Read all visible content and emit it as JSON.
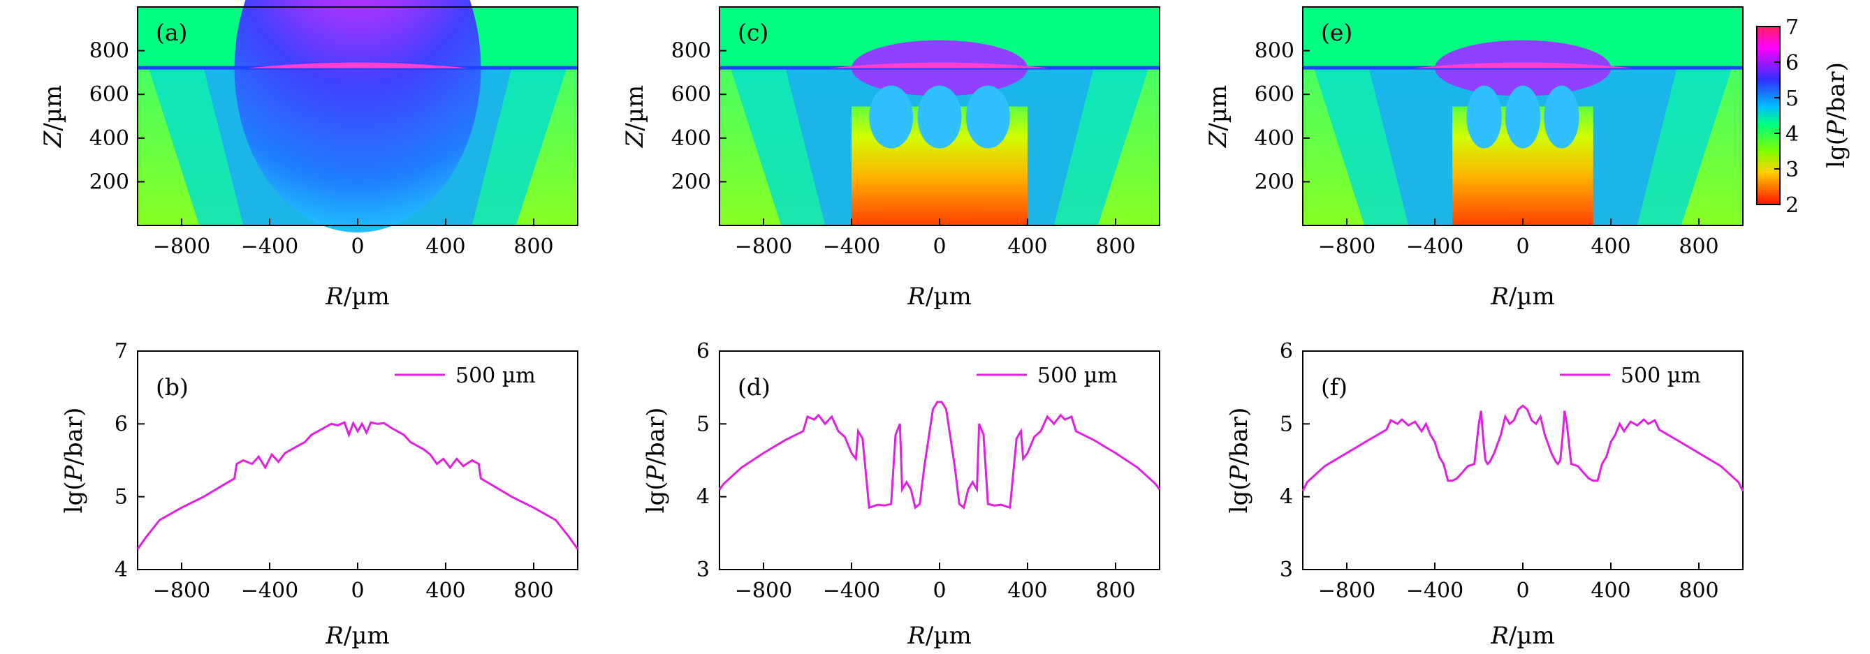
{
  "chart_data": {
    "type": "heatmap+line",
    "colorbar": {
      "label": "lg(P/bar)",
      "ticks": [
        "7",
        "6",
        "5",
        "4",
        "3",
        "2"
      ],
      "range": [
        2,
        7
      ]
    },
    "heatmap_panels": [
      {
        "label": "(a)",
        "xlabel": "R/µm",
        "ylabel": "Z/µm",
        "xlim": [
          -1000,
          1000
        ],
        "ylim": [
          0,
          1000
        ],
        "xticks": [
          "−800",
          "−400",
          "0",
          "400",
          "800"
        ],
        "yticks": [
          "200",
          "400",
          "600",
          "800"
        ],
        "surface_z": 720,
        "ambient_value": 4.0,
        "jet_width": 0
      },
      {
        "label": "(c)",
        "xlabel": "R/µm",
        "ylabel": "Z/µm",
        "xlim": [
          -1000,
          1000
        ],
        "ylim": [
          0,
          1000
        ],
        "xticks": [
          "−800",
          "−400",
          "0",
          "400",
          "800"
        ],
        "yticks": [
          "200",
          "400",
          "600",
          "800"
        ],
        "surface_z": 720,
        "ambient_value": 4.0,
        "jet_width": 400
      },
      {
        "label": "(e)",
        "xlabel": "R/µm",
        "ylabel": "Z/µm",
        "xlim": [
          -1000,
          1000
        ],
        "ylim": [
          0,
          1000
        ],
        "xticks": [
          "−800",
          "−400",
          "0",
          "400",
          "800"
        ],
        "yticks": [
          "200",
          "400",
          "600",
          "800"
        ],
        "surface_z": 720,
        "ambient_value": 4.0,
        "jet_width": 320
      }
    ],
    "line_panels": [
      {
        "label": "(b)",
        "legend": "500 µm",
        "color": "#e020e0",
        "xlabel": "R/µm",
        "ylabel": "lg(P/bar)",
        "xlim": [
          -1000,
          1000
        ],
        "ylim": [
          4,
          7
        ],
        "xticks": [
          "−800",
          "−400",
          "0",
          "400",
          "800"
        ],
        "yticks": [
          "4",
          "5",
          "6",
          "7"
        ],
        "series": {
          "x": [
            -1000,
            -960,
            -900,
            -800,
            -700,
            -600,
            -560,
            -550,
            -520,
            -480,
            -450,
            -420,
            -390,
            -360,
            -330,
            -300,
            -270,
            -240,
            -210,
            -180,
            -150,
            -120,
            -90,
            -60,
            -40,
            -20,
            0,
            20,
            40,
            60,
            90,
            120,
            150,
            180,
            210,
            240,
            270,
            300,
            330,
            360,
            390,
            420,
            450,
            480,
            520,
            550,
            560,
            600,
            700,
            800,
            900,
            960,
            1000
          ],
          "y": [
            4.28,
            4.45,
            4.68,
            4.85,
            5.0,
            5.18,
            5.25,
            5.45,
            5.5,
            5.45,
            5.55,
            5.4,
            5.58,
            5.48,
            5.6,
            5.65,
            5.7,
            5.75,
            5.85,
            5.9,
            5.95,
            6.0,
            5.98,
            6.02,
            5.85,
            6.01,
            5.9,
            6.0,
            5.88,
            6.02,
            6.0,
            6.01,
            5.95,
            5.9,
            5.85,
            5.75,
            5.7,
            5.65,
            5.58,
            5.45,
            5.52,
            5.4,
            5.52,
            5.42,
            5.5,
            5.45,
            5.25,
            5.18,
            5.0,
            4.85,
            4.68,
            4.45,
            4.28
          ]
        }
      },
      {
        "label": "(d)",
        "legend": "500 µm",
        "color": "#e020e0",
        "xlabel": "R/µm",
        "ylabel": "lg(P/bar)",
        "xlim": [
          -1000,
          1000
        ],
        "ylim": [
          3,
          6
        ],
        "xticks": [
          "−800",
          "−400",
          "0",
          "400",
          "800"
        ],
        "yticks": [
          "3",
          "4",
          "5",
          "6"
        ],
        "series": {
          "x": [
            -1000,
            -980,
            -900,
            -800,
            -700,
            -620,
            -600,
            -570,
            -550,
            -520,
            -490,
            -460,
            -430,
            -400,
            -380,
            -370,
            -350,
            -320,
            -300,
            -280,
            -250,
            -220,
            -200,
            -180,
            -170,
            -160,
            -150,
            -130,
            -110,
            -90,
            -70,
            -50,
            -30,
            -10,
            0,
            10,
            30,
            50,
            70,
            90,
            110,
            130,
            150,
            160,
            170,
            180,
            200,
            220,
            250,
            280,
            300,
            320,
            350,
            370,
            380,
            400,
            430,
            460,
            490,
            520,
            550,
            570,
            600,
            620,
            700,
            800,
            900,
            980,
            1000
          ],
          "y": [
            4.1,
            4.18,
            4.4,
            4.6,
            4.78,
            4.9,
            5.1,
            5.06,
            5.12,
            5.0,
            5.1,
            4.9,
            4.82,
            4.6,
            4.52,
            4.9,
            4.8,
            3.85,
            3.87,
            3.89,
            3.88,
            3.9,
            4.85,
            5.0,
            4.1,
            4.15,
            4.2,
            4.1,
            3.85,
            3.9,
            4.4,
            4.8,
            5.2,
            5.3,
            5.3,
            5.3,
            5.2,
            4.8,
            4.4,
            3.9,
            3.85,
            4.1,
            4.2,
            4.15,
            4.1,
            5.0,
            4.85,
            3.9,
            3.88,
            3.89,
            3.87,
            3.85,
            4.8,
            4.9,
            4.52,
            4.6,
            4.82,
            4.9,
            5.1,
            5.0,
            5.12,
            5.06,
            5.1,
            4.9,
            4.78,
            4.6,
            4.4,
            4.18,
            4.1
          ]
        }
      },
      {
        "label": "(f)",
        "legend": "500 µm",
        "color": "#e020e0",
        "xlabel": "R/µm",
        "ylabel": "lg(P/bar)",
        "xlim": [
          -1000,
          1000
        ],
        "ylim": [
          3,
          6
        ],
        "xticks": [
          "−800",
          "−400",
          "0",
          "400",
          "800"
        ],
        "yticks": [
          "3",
          "4",
          "5",
          "6"
        ],
        "series": {
          "x": [
            -1000,
            -980,
            -900,
            -800,
            -700,
            -620,
            -600,
            -570,
            -550,
            -520,
            -490,
            -460,
            -440,
            -420,
            -400,
            -380,
            -360,
            -340,
            -320,
            -300,
            -270,
            -250,
            -220,
            -200,
            -190,
            -180,
            -170,
            -160,
            -150,
            -130,
            -100,
            -80,
            -60,
            -40,
            -20,
            0,
            20,
            40,
            60,
            80,
            100,
            130,
            150,
            160,
            170,
            180,
            190,
            200,
            220,
            250,
            270,
            300,
            320,
            340,
            360,
            380,
            400,
            420,
            440,
            460,
            490,
            520,
            550,
            570,
            600,
            620,
            700,
            800,
            900,
            980,
            1000
          ],
          "y": [
            4.08,
            4.2,
            4.42,
            4.6,
            4.78,
            4.92,
            5.05,
            5.0,
            5.06,
            4.98,
            5.03,
            4.9,
            5.0,
            4.85,
            4.75,
            4.55,
            4.45,
            4.22,
            4.22,
            4.25,
            4.35,
            4.42,
            4.45,
            5.0,
            5.18,
            4.8,
            4.5,
            4.45,
            4.48,
            4.6,
            4.85,
            5.1,
            5.0,
            5.05,
            5.2,
            5.25,
            5.2,
            5.05,
            5.0,
            5.1,
            4.85,
            4.6,
            4.48,
            4.45,
            4.5,
            4.8,
            5.18,
            5.0,
            4.45,
            4.42,
            4.35,
            4.25,
            4.22,
            4.22,
            4.45,
            4.55,
            4.75,
            4.85,
            5.0,
            4.9,
            5.03,
            4.98,
            5.06,
            5.0,
            5.05,
            4.92,
            4.78,
            4.6,
            4.42,
            4.2,
            4.08
          ]
        }
      }
    ]
  }
}
